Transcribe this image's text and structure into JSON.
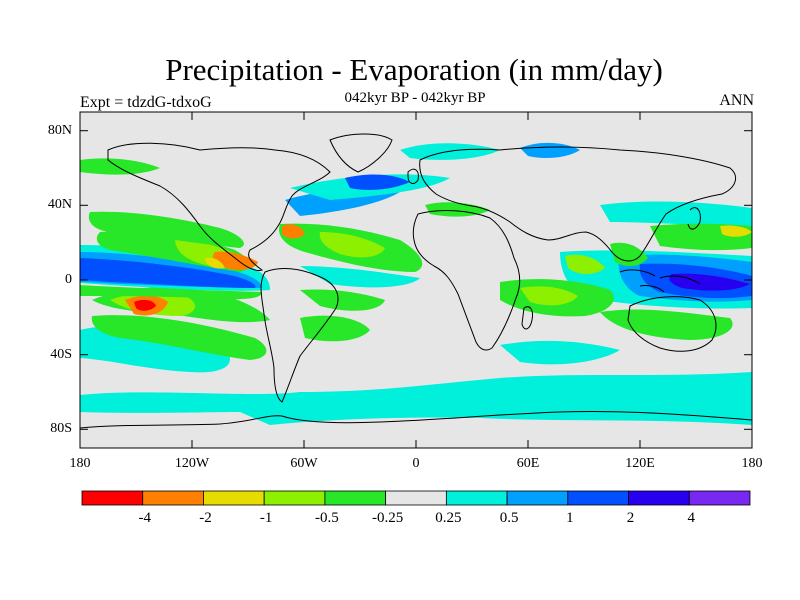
{
  "title": "Precipitation - Evaporation (in mm/day)",
  "subtitle": "042kyr BP - 042kyr BP",
  "left_label": "Expt = tdzdG-tdxoG",
  "right_label": "ANN",
  "lat_ticks": [
    "80N",
    "40N",
    "0",
    "40S",
    "80S"
  ],
  "lon_ticks": [
    "180",
    "120W",
    "60W",
    "0",
    "60E",
    "120E",
    "180"
  ],
  "colorbar": {
    "colors": [
      "#ff0000",
      "#ff8000",
      "#e6dc00",
      "#8cf000",
      "#28e628",
      "#e6e6e6",
      "#00f0dc",
      "#00a0ff",
      "#0050ff",
      "#2800f0",
      "#7828f0"
    ],
    "labels": [
      "-4",
      "-2",
      "-1",
      "-0.5",
      "-0.25",
      "0.25",
      "0.5",
      "1",
      "2",
      "4"
    ]
  },
  "colors": {
    "land": "#e6e6e6",
    "ocean_neutral": "#e6e6e6",
    "coast": "#000000"
  }
}
